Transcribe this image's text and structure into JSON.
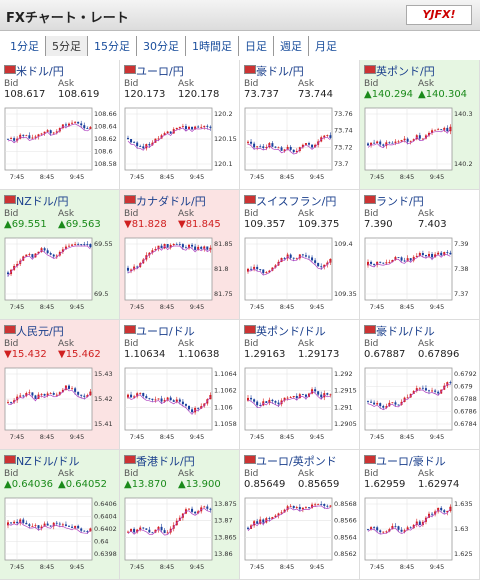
{
  "header": {
    "title": "FXチャート・レート",
    "logo": "YJFX!"
  },
  "tabs": [
    "1分足",
    "5分足",
    "15分足",
    "30分足",
    "1時間足",
    "日足",
    "週足",
    "月足"
  ],
  "selected_tab": 1,
  "bid_label": "Bid",
  "ask_label": "Ask",
  "time_labels": [
    "7:45",
    "8:45",
    "9:45"
  ],
  "panels": [
    {
      "name": "米ドル/円",
      "bid": "108.617",
      "ask": "108.619",
      "ticks": [
        "108.66",
        "108.64",
        "108.62",
        "108.6",
        "108.58"
      ]
    },
    {
      "name": "ユーロ/円",
      "bid": "120.173",
      "ask": "120.178",
      "ticks": [
        "120.2",
        "120.15",
        "120.1"
      ]
    },
    {
      "name": "豪ドル/円",
      "bid": "73.737",
      "ask": "73.744",
      "ticks": [
        "73.76",
        "73.74",
        "73.72",
        "73.7"
      ]
    },
    {
      "name": "英ポンド/円",
      "bid": "▲140.294",
      "ask": "▲140.304",
      "trend": "up",
      "ticks": [
        "140.3",
        "140.2"
      ]
    },
    {
      "name": "NZドル/円",
      "bid": "▲69.551",
      "ask": "▲69.563",
      "trend": "up",
      "ticks": [
        "69.55",
        "69.5"
      ]
    },
    {
      "name": "カナダドル/円",
      "bid": "▼81.828",
      "ask": "▼81.845",
      "trend": "down",
      "ticks": [
        "81.85",
        "81.8",
        "81.75"
      ]
    },
    {
      "name": "スイスフラン/円",
      "bid": "109.357",
      "ask": "109.375",
      "ticks": [
        "109.4",
        "109.35"
      ]
    },
    {
      "name": "ランド/円",
      "bid": "7.390",
      "ask": "7.403",
      "ticks": [
        "7.39",
        "7.38",
        "7.37"
      ]
    },
    {
      "name": "人民元/円",
      "bid": "▼15.432",
      "ask": "▼15.462",
      "trend": "down",
      "ticks": [
        "15.43",
        "15.42",
        "15.41"
      ]
    },
    {
      "name": "ユーロ/ドル",
      "bid": "1.10634",
      "ask": "1.10638",
      "ticks": [
        "1.1064",
        "1.1062",
        "1.106",
        "1.1058"
      ]
    },
    {
      "name": "英ポンド/ドル",
      "bid": "1.29163",
      "ask": "1.29173",
      "ticks": [
        "1.292",
        "1.2915",
        "1.291",
        "1.2905"
      ]
    },
    {
      "name": "豪ドル/ドル",
      "bid": "0.67887",
      "ask": "0.67896",
      "ticks": [
        "0.6792",
        "0.679",
        "0.6788",
        "0.6786",
        "0.6784"
      ]
    },
    {
      "name": "NZドル/ドル",
      "bid": "▲0.64036",
      "ask": "▲0.64052",
      "trend": "up",
      "ticks": [
        "0.6406",
        "0.6404",
        "0.6402",
        "0.64",
        "0.6398"
      ]
    },
    {
      "name": "香港ドル/円",
      "bid": "▲13.870",
      "ask": "▲13.900",
      "trend": "up",
      "ticks": [
        "13.875",
        "13.87",
        "13.865",
        "13.86"
      ]
    },
    {
      "name": "ユーロ/英ポンド",
      "bid": "0.85649",
      "ask": "0.85659",
      "ticks": [
        "0.8568",
        "0.8566",
        "0.8564",
        "0.8562"
      ]
    },
    {
      "name": "ユーロ/豪ドル",
      "bid": "1.62959",
      "ask": "1.62974",
      "ticks": [
        "1.635",
        "1.63",
        "1.625"
      ]
    }
  ]
}
